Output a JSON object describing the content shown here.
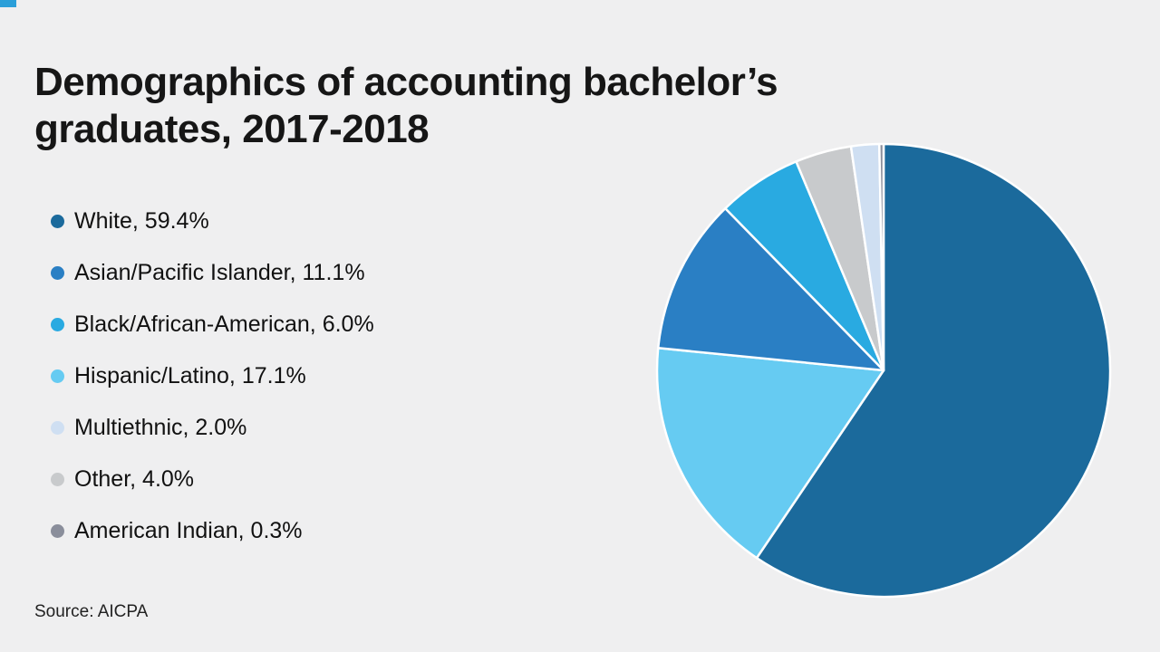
{
  "meta": {
    "background_color": "#efeff0",
    "accent_color": "#2b9fd9"
  },
  "title": "Demographics of accounting bachelor’s graduates, 2017-2018",
  "title_lines": [
    "Demographics of accounting bachelor’s",
    "graduates, 2017-2018"
  ],
  "source": "Source: AICPA",
  "chart_data": {
    "type": "pie",
    "title": "Demographics of accounting bachelor’s graduates, 2017-2018",
    "legend_position": "left",
    "start_angle_deg": 0,
    "direction": "clockwise",
    "stroke_color": "#ffffff",
    "slices": [
      {
        "label": "White",
        "value": 59.4,
        "display": "59.4%",
        "color": "#1b6a9c"
      },
      {
        "label": "Asian/Pacific Islander",
        "value": 11.1,
        "display": "11.1%",
        "color": "#2a7fc4"
      },
      {
        "label": "Black/African-American",
        "value": 6.0,
        "display": "6.0%",
        "color": "#29aae1"
      },
      {
        "label": "Hispanic/Latino",
        "value": 17.1,
        "display": "17.1%",
        "color": "#66cbf2"
      },
      {
        "label": "Multiethnic",
        "value": 2.0,
        "display": "2.0%",
        "color": "#cfdff2"
      },
      {
        "label": "Other",
        "value": 4.0,
        "display": "4.0%",
        "color": "#c8cacc"
      },
      {
        "label": "American Indian",
        "value": 0.3,
        "display": "0.3%",
        "color": "#8a8e9b"
      }
    ],
    "draw_order": [
      "White",
      "Hispanic/Latino",
      "Asian/Pacific Islander",
      "Black/African-American",
      "Other",
      "Multiethnic",
      "American Indian"
    ]
  }
}
